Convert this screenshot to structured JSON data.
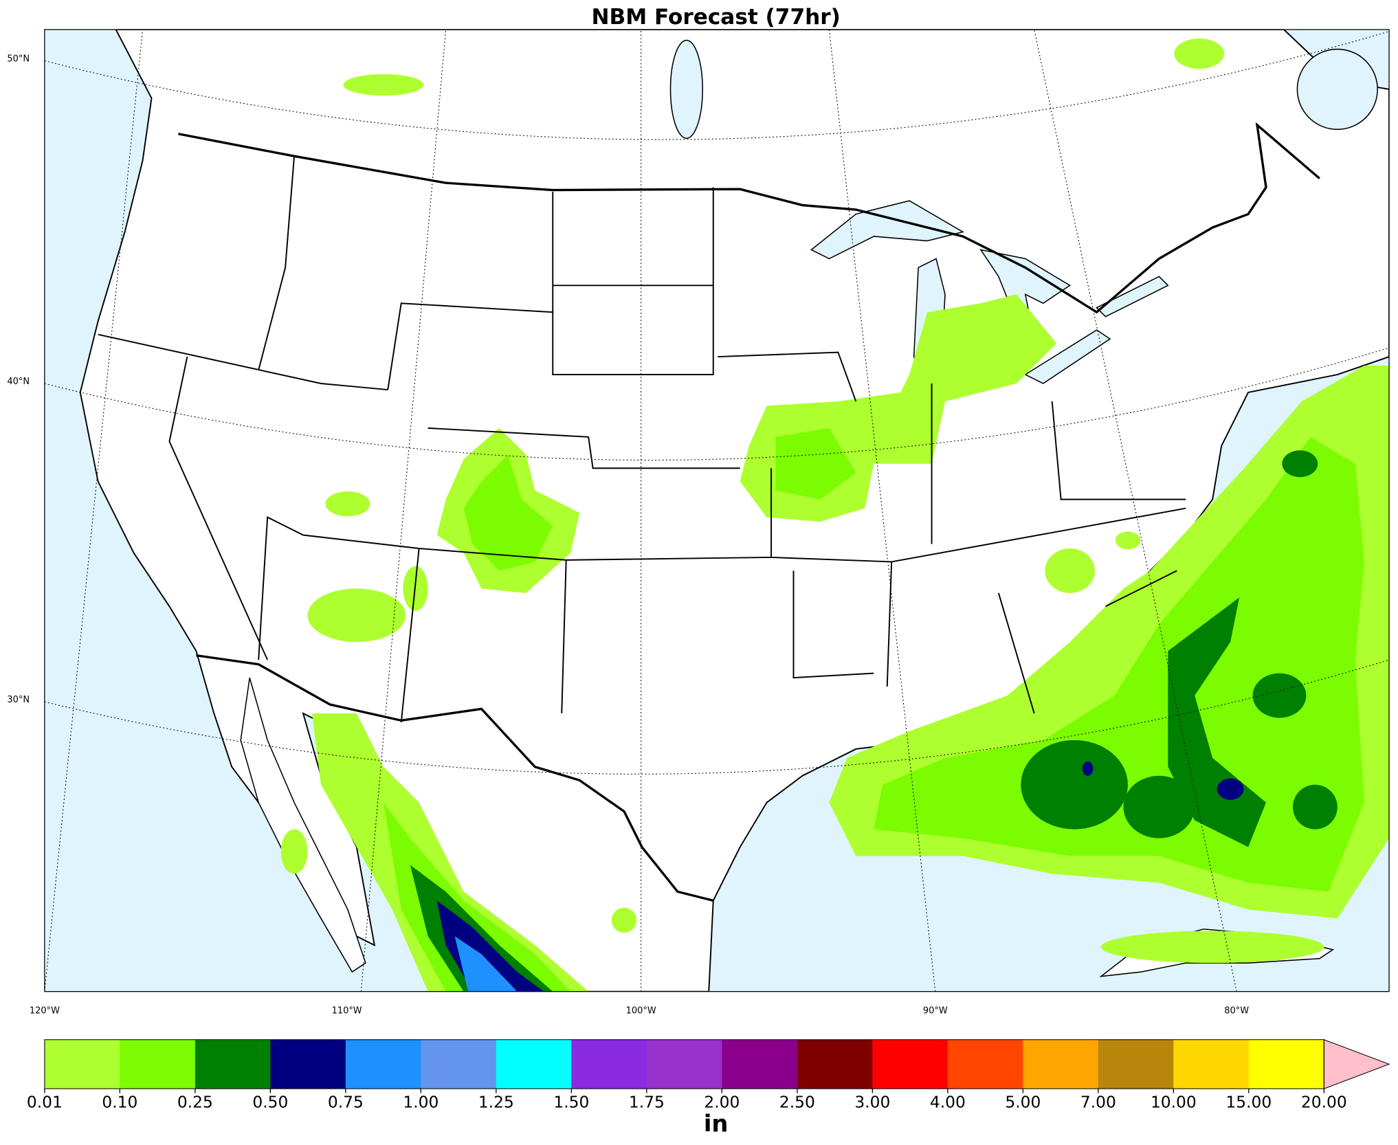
{
  "title": "NBM Forecast (77hr)",
  "map": {
    "lat_labels": [
      "50°N",
      "40°N",
      "30°N"
    ],
    "lon_labels": [
      "120°W",
      "110°W",
      "100°W",
      "90°W",
      "80°W"
    ]
  },
  "colorbar": {
    "ticks": [
      {
        "value": 0.01,
        "label": "0.01"
      },
      {
        "value": 0.1,
        "label": "0.10"
      },
      {
        "value": 0.25,
        "label": "0.25"
      },
      {
        "value": 0.5,
        "label": "0.50"
      },
      {
        "value": 0.75,
        "label": "0.75"
      },
      {
        "value": 1,
        "label": "1.00"
      },
      {
        "value": 1.25,
        "label": "1.25"
      },
      {
        "value": 1.5,
        "label": "1.50"
      },
      {
        "value": 1.75,
        "label": "1.75"
      },
      {
        "value": 2,
        "label": "2.00"
      },
      {
        "value": 2.5,
        "label": "2.50"
      },
      {
        "value": 3,
        "label": "3.00"
      },
      {
        "value": 4,
        "label": "4.00"
      },
      {
        "value": 5,
        "label": "5.00"
      },
      {
        "value": 7,
        "label": "7.00"
      },
      {
        "value": 10,
        "label": "10.00"
      },
      {
        "value": 15,
        "label": "15.00"
      },
      {
        "value": 20,
        "label": "20.00"
      }
    ],
    "colors": [
      "#adff2f",
      "#7cfc00",
      "#008000",
      "#000080",
      "#1e90ff",
      "#6495ed",
      "#00ffff",
      "#8a2be2",
      "#9932cc",
      "#8b008b",
      "#800000",
      "#ff0000",
      "#ff4500",
      "#ffa500",
      "#b8860b",
      "#ffd700",
      "#ffff00"
    ],
    "extend_color": "#ffc0cb",
    "unit": "in"
  }
}
